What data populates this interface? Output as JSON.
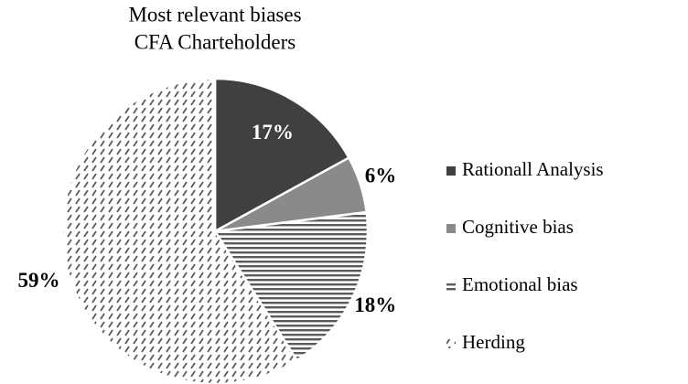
{
  "chart_data": {
    "type": "pie",
    "title": "Most relevant biases",
    "subtitle": "CFA Charteholders",
    "categories": [
      "Rationall Analysis",
      "Cognitive bias",
      "Emotional bias",
      "Herding"
    ],
    "values": [
      17,
      6,
      18,
      59
    ],
    "value_labels": [
      "17%",
      "6%",
      "18%",
      "59%"
    ],
    "colors": [
      "#404040",
      "#8a8a8a",
      "#5a5a5a",
      "#5a5a5a"
    ],
    "patterns": [
      "solid",
      "solid",
      "horizontal",
      "diagonal"
    ],
    "legend": "right"
  }
}
